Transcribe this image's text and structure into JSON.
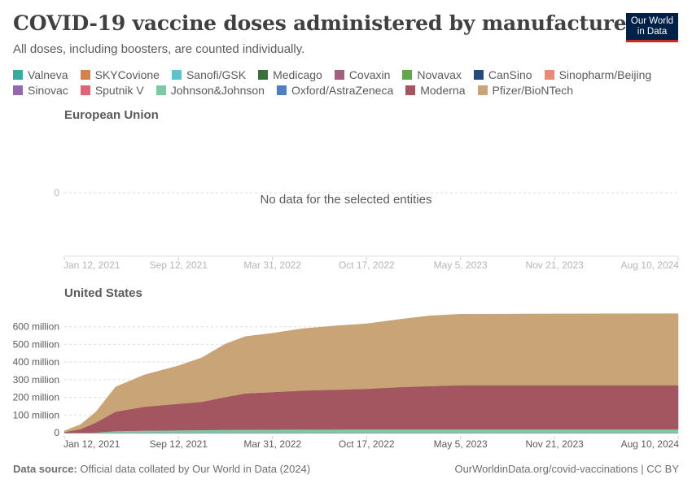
{
  "header": {
    "title": "COVID-19 vaccine doses administered by manufacturer",
    "subtitle": "All doses, including boosters, are counted individually.",
    "logo_line1": "Our World",
    "logo_line2": "in Data"
  },
  "footer": {
    "source_label": "Data source:",
    "source_text": "Official data collated by Our World in Data (2024)",
    "url_text": "OurWorldinData.org/covid-vaccinations | CC BY"
  },
  "chart_data": {
    "type": "area",
    "stacked": true,
    "legend_position": "top",
    "legend": [
      {
        "name": "Valneva",
        "color": "#38aaa0"
      },
      {
        "name": "SKYCovione",
        "color": "#d1834f"
      },
      {
        "name": "Sanofi/GSK",
        "color": "#62c1cc"
      },
      {
        "name": "Medicago",
        "color": "#3b6f3e"
      },
      {
        "name": "Covaxin",
        "color": "#a0607e"
      },
      {
        "name": "Novavax",
        "color": "#63a74c"
      },
      {
        "name": "CanSino",
        "color": "#284b7b"
      },
      {
        "name": "Sinopharm/Beijing",
        "color": "#e88a7a"
      },
      {
        "name": "Sinovac",
        "color": "#9467b0"
      },
      {
        "name": "Sputnik V",
        "color": "#e06477"
      },
      {
        "name": "Johnson&Johnson",
        "color": "#7dc9a3"
      },
      {
        "name": "Oxford/AstraZeneca",
        "color": "#4f80c4"
      },
      {
        "name": "Moderna",
        "color": "#a35560"
      },
      {
        "name": "Pfizer/BioNTech",
        "color": "#c8a477"
      }
    ],
    "x_ticks": [
      "Jan 12, 2021",
      "Sep 12, 2021",
      "Mar 31, 2022",
      "Oct 17, 2022",
      "May 5, 2023",
      "Nov 21, 2023",
      "Aug 10, 2024"
    ],
    "panels": [
      {
        "title": "European Union",
        "no_data": true,
        "no_data_text": "No data for the selected entities",
        "y_ticks": [
          {
            "value": 0,
            "label": "0"
          }
        ]
      },
      {
        "title": "United States",
        "no_data": false,
        "ylim": [
          0,
          700000000
        ],
        "y_ticks": [
          {
            "value": 0,
            "label": "0"
          },
          {
            "value": 100000000,
            "label": "100 million"
          },
          {
            "value": 200000000,
            "label": "200 million"
          },
          {
            "value": 300000000,
            "label": "300 million"
          },
          {
            "value": 400000000,
            "label": "400 million"
          },
          {
            "value": 500000000,
            "label": "500 million"
          },
          {
            "value": 600000000,
            "label": "600 million"
          }
        ],
        "x": [
          "2021-01-12",
          "2021-02-15",
          "2021-03-20",
          "2021-05-01",
          "2021-07-01",
          "2021-09-12",
          "2021-11-01",
          "2021-12-20",
          "2022-02-01",
          "2022-03-31",
          "2022-06-01",
          "2022-08-15",
          "2022-10-17",
          "2023-01-01",
          "2023-03-01",
          "2023-05-05",
          "2023-11-21",
          "2024-08-10"
        ],
        "series": [
          {
            "name": "Johnson&Johnson",
            "values": [
              0,
              0,
              2000000,
              9000000,
              12000000,
              14000000,
              15000000,
              16500000,
              17500000,
              18000000,
              18500000,
              18700000,
              18800000,
              18900000,
              19000000,
              19000000,
              19000000,
              19000000
            ]
          },
          {
            "name": "Moderna",
            "values": [
              3000000,
              20000000,
              55000000,
              110000000,
              135000000,
              150000000,
              160000000,
              185000000,
              205000000,
              212000000,
              220000000,
              225000000,
              230000000,
              240000000,
              245000000,
              250000000,
              250000000,
              250000000
            ]
          },
          {
            "name": "Pfizer/BioNTech",
            "values": [
              7000000,
              25000000,
              60000000,
              140000000,
              180000000,
              215000000,
              250000000,
              300000000,
              322000000,
              333000000,
              350000000,
              362000000,
              368000000,
              385000000,
              398000000,
              402000000,
              404000000,
              405000000
            ]
          }
        ]
      }
    ]
  }
}
